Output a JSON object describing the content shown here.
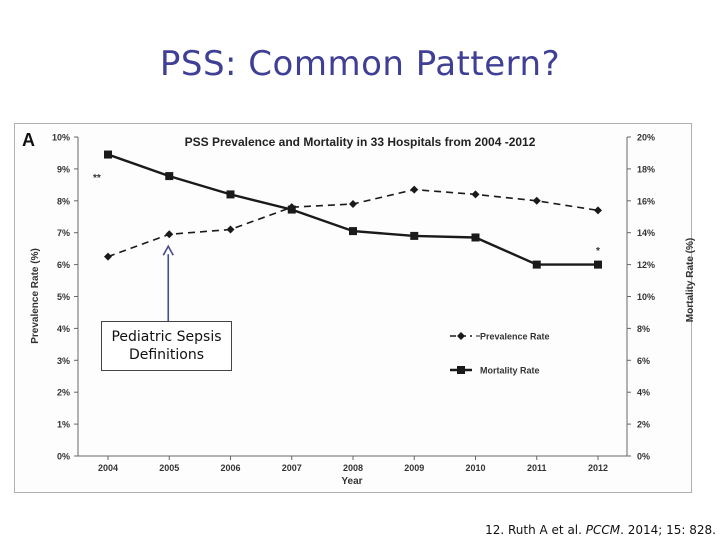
{
  "slide": {
    "title": "PSS: Common Pattern?",
    "callout_line1": "Pediatric Sepsis",
    "callout_line2": "Definitions",
    "citation_prefix": "12. Ruth A et al. ",
    "citation_journal": "PCCM",
    "citation_suffix": ". 2014; 15: 828."
  },
  "chart_data": {
    "type": "line",
    "panel_label": "A",
    "title": "PSS Prevalence and Mortality in 33 Hospitals from 2004 -2012",
    "xlabel": "Year",
    "ylabel_left": "Prevalence Rate (%)",
    "ylabel_right": "Mortality Rate (%)",
    "categories": [
      "2004",
      "2005",
      "2006",
      "2007",
      "2008",
      "2009",
      "2010",
      "2011",
      "2012"
    ],
    "y_left": {
      "min": 0,
      "max": 10,
      "step": 1,
      "ticks": [
        "0%",
        "1%",
        "2%",
        "3%",
        "4%",
        "5%",
        "6%",
        "7%",
        "8%",
        "9%",
        "10%"
      ]
    },
    "y_right": {
      "min": 0,
      "max": 20,
      "step": 2,
      "ticks": [
        "0%",
        "2%",
        "4%",
        "6%",
        "8%",
        "10%",
        "12%",
        "14%",
        "16%",
        "18%",
        "20%"
      ]
    },
    "grid": false,
    "legend_position": "center-right",
    "series": [
      {
        "name": "Prevalence Rate",
        "axis": "left",
        "style": "dashed",
        "marker": "diamond",
        "color": "#1a1a1a",
        "values": [
          6.25,
          6.95,
          7.1,
          7.8,
          7.9,
          8.35,
          8.2,
          8.0,
          7.7
        ]
      },
      {
        "name": "Mortality Rate",
        "axis": "right",
        "style": "solid",
        "marker": "square",
        "color": "#1a1a1a",
        "values": [
          18.9,
          17.55,
          16.4,
          15.45,
          14.1,
          13.8,
          13.7,
          12.0,
          12.0
        ]
      }
    ],
    "annotations": [
      {
        "text": "**",
        "series": "Prevalence Rate"
      },
      {
        "text": "*",
        "series": "Mortality Rate"
      }
    ]
  }
}
